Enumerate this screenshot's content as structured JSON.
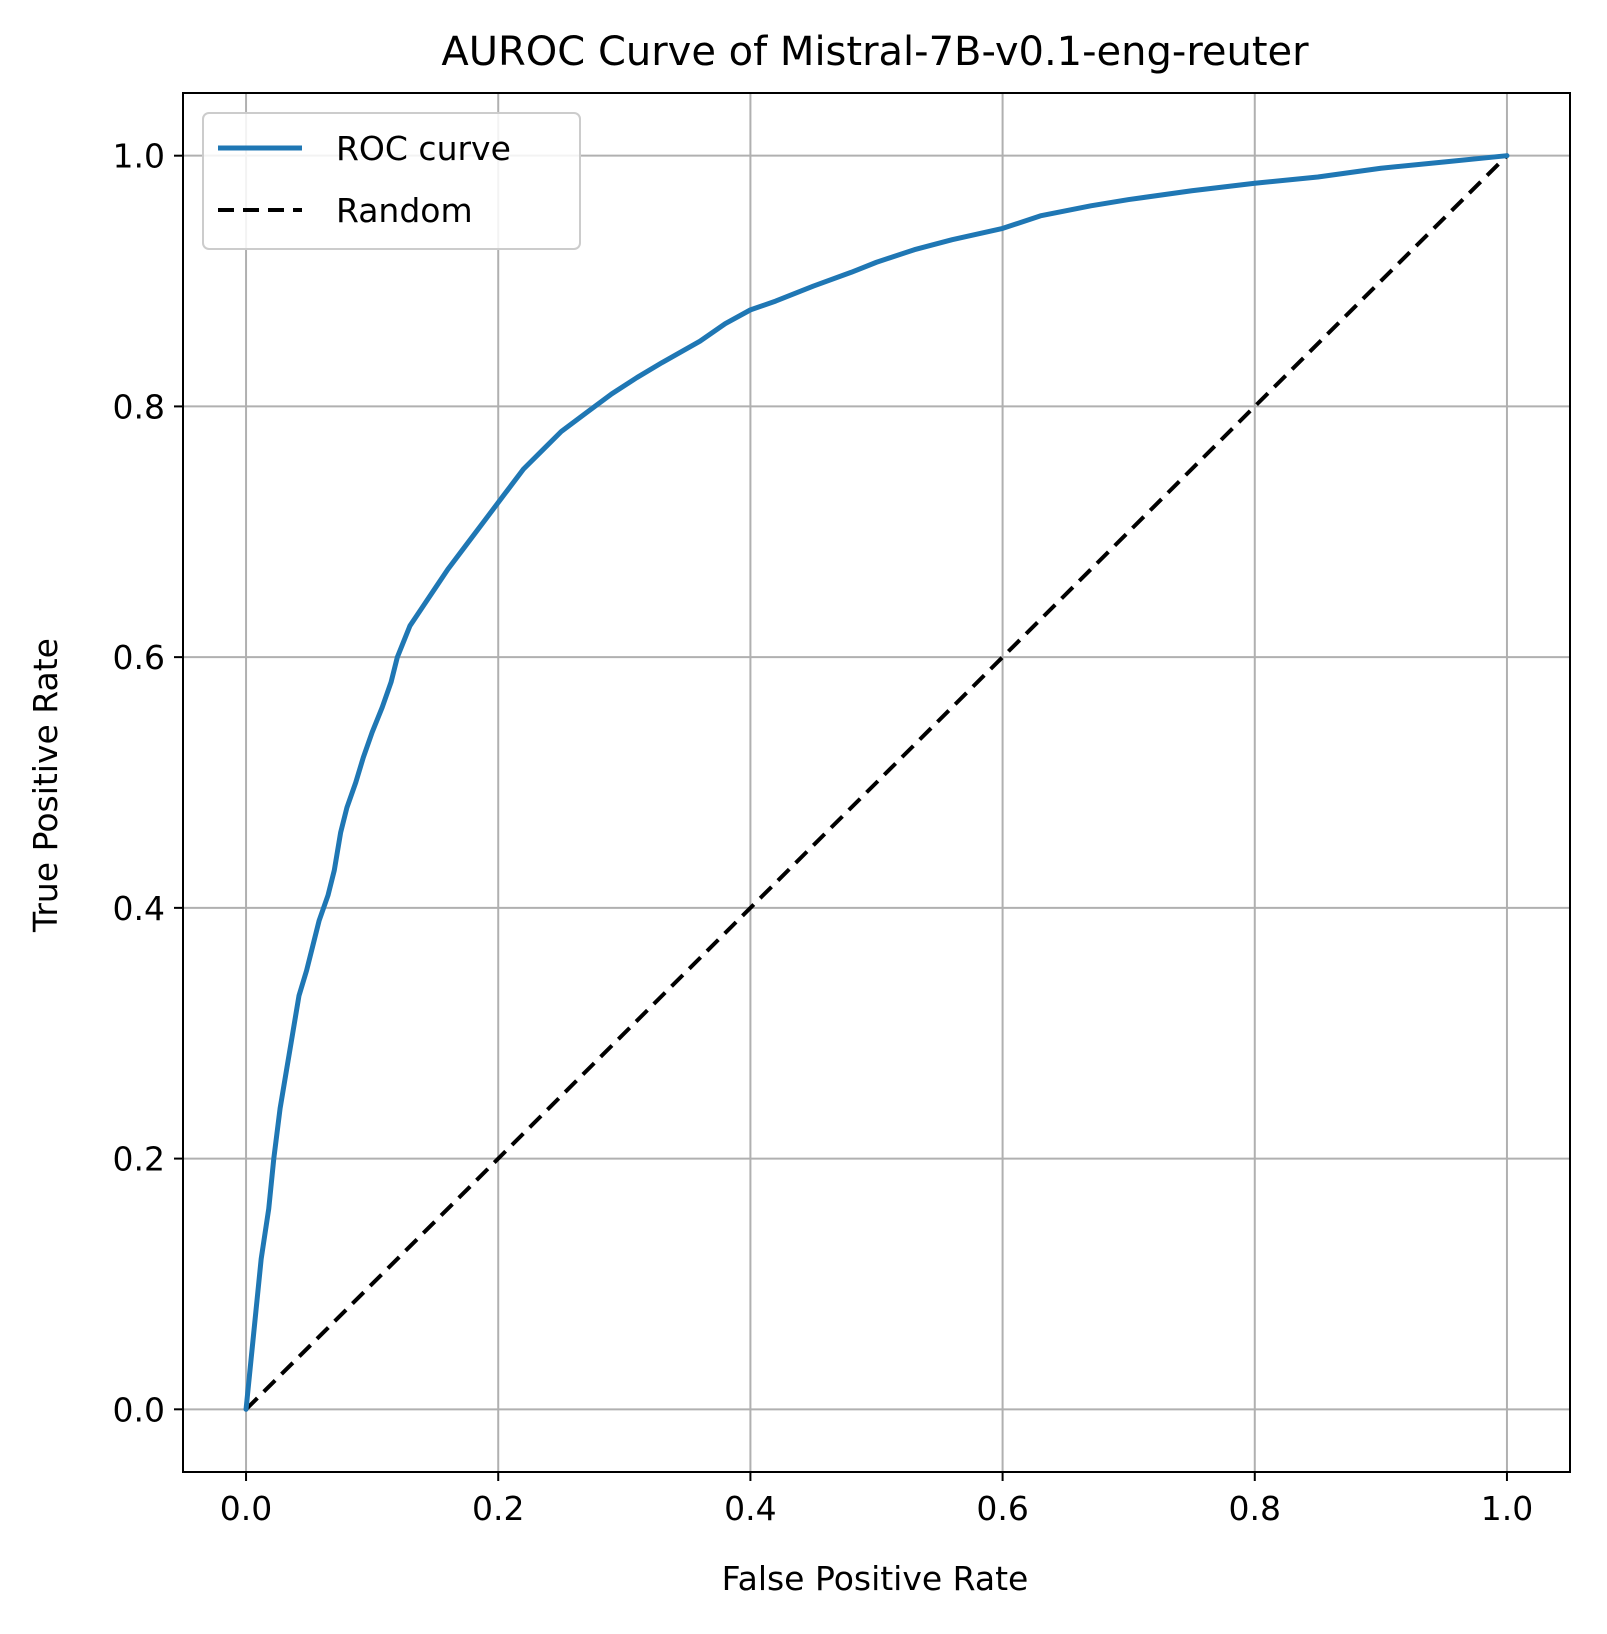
{
  "chart_data": {
    "type": "line",
    "title": "AUROC Curve of Mistral-7B-v0.1-eng-reuter",
    "xlabel": "False Positive Rate",
    "ylabel": "True Positive Rate",
    "xlim": [
      -0.05,
      1.05
    ],
    "ylim": [
      -0.05,
      1.05
    ],
    "grid": true,
    "legend_position": "upper-left",
    "x_ticks": [
      "0.0",
      "0.2",
      "0.4",
      "0.6",
      "0.8",
      "1.0"
    ],
    "y_ticks": [
      "0.0",
      "0.2",
      "0.4",
      "0.6",
      "0.8",
      "1.0"
    ],
    "series": [
      {
        "name": "ROC curve",
        "color": "#1f77b4",
        "style": "solid",
        "points": [
          [
            0.0,
            0.0
          ],
          [
            0.004,
            0.04
          ],
          [
            0.008,
            0.08
          ],
          [
            0.012,
            0.12
          ],
          [
            0.018,
            0.16
          ],
          [
            0.022,
            0.2
          ],
          [
            0.027,
            0.24
          ],
          [
            0.032,
            0.27
          ],
          [
            0.037,
            0.3
          ],
          [
            0.042,
            0.33
          ],
          [
            0.048,
            0.35
          ],
          [
            0.053,
            0.37
          ],
          [
            0.058,
            0.39
          ],
          [
            0.065,
            0.41
          ],
          [
            0.07,
            0.43
          ],
          [
            0.075,
            0.46
          ],
          [
            0.08,
            0.48
          ],
          [
            0.087,
            0.5
          ],
          [
            0.093,
            0.52
          ],
          [
            0.1,
            0.54
          ],
          [
            0.108,
            0.56
          ],
          [
            0.115,
            0.58
          ],
          [
            0.12,
            0.6
          ],
          [
            0.13,
            0.625
          ],
          [
            0.14,
            0.64
          ],
          [
            0.15,
            0.655
          ],
          [
            0.16,
            0.67
          ],
          [
            0.175,
            0.69
          ],
          [
            0.19,
            0.71
          ],
          [
            0.205,
            0.73
          ],
          [
            0.22,
            0.75
          ],
          [
            0.235,
            0.765
          ],
          [
            0.25,
            0.78
          ],
          [
            0.27,
            0.795
          ],
          [
            0.29,
            0.81
          ],
          [
            0.31,
            0.823
          ],
          [
            0.33,
            0.835
          ],
          [
            0.36,
            0.852
          ],
          [
            0.38,
            0.866
          ],
          [
            0.4,
            0.877
          ],
          [
            0.42,
            0.884
          ],
          [
            0.45,
            0.896
          ],
          [
            0.48,
            0.907
          ],
          [
            0.5,
            0.915
          ],
          [
            0.53,
            0.925
          ],
          [
            0.56,
            0.933
          ],
          [
            0.6,
            0.942
          ],
          [
            0.63,
            0.952
          ],
          [
            0.67,
            0.96
          ],
          [
            0.7,
            0.965
          ],
          [
            0.75,
            0.972
          ],
          [
            0.8,
            0.978
          ],
          [
            0.85,
            0.983
          ],
          [
            0.9,
            0.99
          ],
          [
            0.95,
            0.995
          ],
          [
            1.0,
            1.0
          ]
        ]
      },
      {
        "name": "Random",
        "color": "#000000",
        "style": "dashed",
        "points": [
          [
            0.0,
            0.0
          ],
          [
            1.0,
            1.0
          ]
        ]
      }
    ]
  }
}
